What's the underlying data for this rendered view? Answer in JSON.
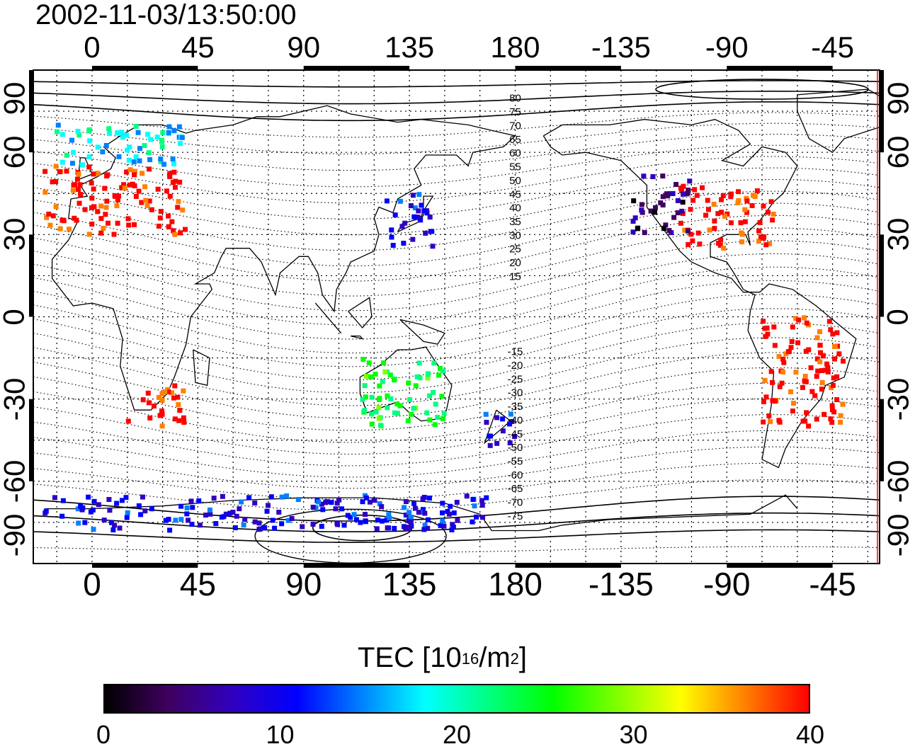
{
  "title": "2002-11-03/13:50:00",
  "lon_ticks": [
    "0",
    "45",
    "90",
    "135",
    "180",
    "-135",
    "-90",
    "-45"
  ],
  "lat_ticks": [
    "90",
    "60",
    "30",
    "0",
    "-30",
    "-60",
    "-90"
  ],
  "contour_labels_north": [
    "80",
    "75",
    "70",
    "65",
    "60",
    "55",
    "50",
    "45",
    "40",
    "35",
    "30",
    "25",
    "20",
    "15"
  ],
  "contour_labels_south": [
    "-15",
    "-20",
    "-25",
    "-30",
    "-35",
    "-40",
    "-45",
    "-50",
    "-55",
    "-60",
    "-65",
    "-70",
    "-75"
  ],
  "colorbar": {
    "title_main": "TEC  [10",
    "title_exp": "16",
    "title_mid": "/m",
    "title_exp2": "2",
    "title_end": "]",
    "ticks": [
      "0",
      "10",
      "20",
      "30",
      "40"
    ],
    "colors": [
      "#000000",
      "#400060",
      "#3000c0",
      "#0000ff",
      "#0080ff",
      "#00ffff",
      "#00ff80",
      "#00ff00",
      "#80ff00",
      "#ffff00",
      "#ff8000",
      "#ff0000"
    ]
  },
  "chart_data": {
    "type": "heatmap",
    "xlabel": "",
    "ylabel": "",
    "xlim": [
      -25,
      335
    ],
    "ylim": [
      -90,
      90
    ],
    "value_range": [
      0,
      40
    ],
    "regions": [
      {
        "lon_range": [
          -20,
          40
        ],
        "lat_range": [
          30,
          55
        ],
        "tec": 40
      },
      {
        "lon_range": [
          -15,
          40
        ],
        "lat_range": [
          55,
          70
        ],
        "tec": 18
      },
      {
        "lon_range": [
          125,
          145
        ],
        "lat_range": [
          25,
          45
        ],
        "tec": 10
      },
      {
        "lon_range": [
          250,
          290
        ],
        "lat_range": [
          25,
          48
        ],
        "tec": 40
      },
      {
        "lon_range": [
          230,
          255
        ],
        "lat_range": [
          30,
          52
        ],
        "tec": 5
      },
      {
        "lon_range": [
          285,
          320
        ],
        "lat_range": [
          -40,
          0
        ],
        "tec": 40
      },
      {
        "lon_range": [
          15,
          40
        ],
        "lat_range": [
          -40,
          -25
        ],
        "tec": 40
      },
      {
        "lon_range": [
          115,
          150
        ],
        "lat_range": [
          -40,
          -15
        ],
        "tec": 24
      },
      {
        "lon_range": [
          165,
          180
        ],
        "lat_range": [
          -48,
          -35
        ],
        "tec": 10
      },
      {
        "lon_range": [
          -20,
          170
        ],
        "lat_range": [
          -78,
          -65
        ],
        "tec": 10
      }
    ]
  }
}
